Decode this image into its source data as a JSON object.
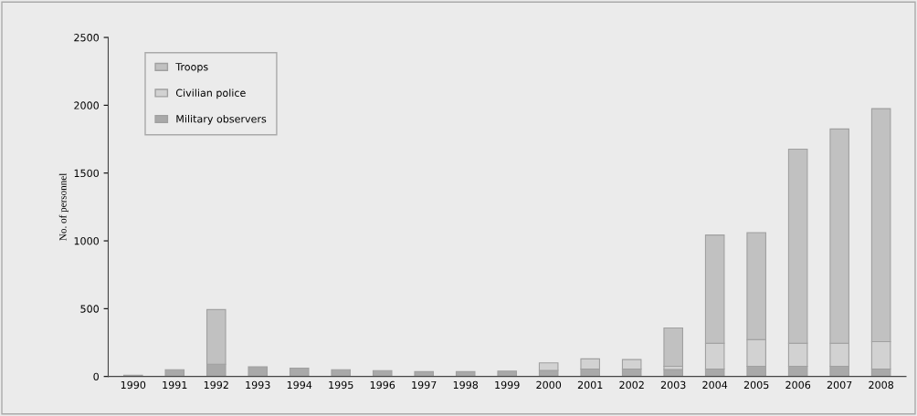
{
  "chart_data": {
    "type": "bar",
    "stacked": true,
    "ylabel": "No. of personnel",
    "categories": [
      "1990",
      "1991",
      "1992",
      "1993",
      "1994",
      "1995",
      "1996",
      "1997",
      "1998",
      "1999",
      "2000",
      "2001",
      "2002",
      "2003",
      "2004",
      "2005",
      "2006",
      "2007",
      "2008"
    ],
    "series": [
      {
        "name": "Military observers",
        "color": "#a9a9a9",
        "values": [
          10,
          50,
          90,
          72,
          62,
          50,
          43,
          36,
          36,
          40,
          45,
          55,
          55,
          52,
          55,
          75,
          75,
          75,
          55
        ]
      },
      {
        "name": "Civilian police",
        "color": "#d2d2d2",
        "values": [
          null,
          null,
          null,
          null,
          null,
          null,
          null,
          null,
          null,
          null,
          55,
          75,
          70,
          23,
          190,
          197,
          170,
          170,
          202
        ]
      },
      {
        "name": "Troops",
        "color": "#c1c1c1",
        "values": [
          null,
          null,
          403,
          null,
          null,
          null,
          null,
          null,
          null,
          null,
          null,
          null,
          null,
          283,
          798,
          789,
          1431,
          1580,
          1718
        ]
      }
    ],
    "ylim": [
      0,
      2500
    ],
    "yticks": [
      0,
      500,
      1000,
      1500,
      2000,
      2500
    ],
    "grid": false,
    "legend": "top left"
  }
}
